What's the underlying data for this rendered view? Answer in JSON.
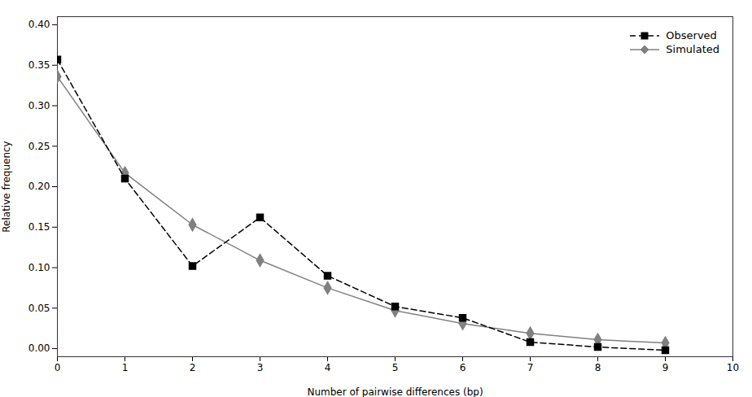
{
  "chart_data": {
    "type": "line",
    "x": [
      0,
      1,
      2,
      3,
      4,
      5,
      6,
      7,
      8,
      9
    ],
    "series": [
      {
        "name": "Observed",
        "color": "#000000",
        "marker": "square",
        "line_style": "dashed",
        "values": [
          0.357,
          0.21,
          0.102,
          0.162,
          0.09,
          0.052,
          0.038,
          0.008,
          0.002,
          -0.002
        ]
      },
      {
        "name": "Simulated",
        "color": "#808080",
        "marker": "diamond",
        "line_style": "solid",
        "values": [
          0.336,
          0.217,
          0.153,
          0.109,
          0.075,
          0.047,
          0.031,
          0.019,
          0.011,
          0.007
        ]
      }
    ],
    "xlabel": "Number of pairwise differences (bp)",
    "ylabel": "Relative frequency",
    "xlim": [
      0,
      10
    ],
    "ylim": [
      -0.01,
      0.41
    ],
    "xticks": [
      0,
      1,
      2,
      3,
      4,
      5,
      6,
      7,
      8,
      9,
      10
    ],
    "yticks": [
      {
        "value": 0,
        "label": "0.00"
      },
      {
        "value": 0.05,
        "label": "0.05"
      },
      {
        "value": 0.1,
        "label": "0.10"
      },
      {
        "value": 0.15,
        "label": "0.15"
      },
      {
        "value": 0.2,
        "label": "0.20"
      },
      {
        "value": 0.25,
        "label": "0.25"
      },
      {
        "value": 0.3,
        "label": "0.30"
      },
      {
        "value": 0.35,
        "label": "0.35"
      },
      {
        "value": 0.4,
        "label": "0.40"
      }
    ],
    "grid": false,
    "legend": "upper right"
  }
}
